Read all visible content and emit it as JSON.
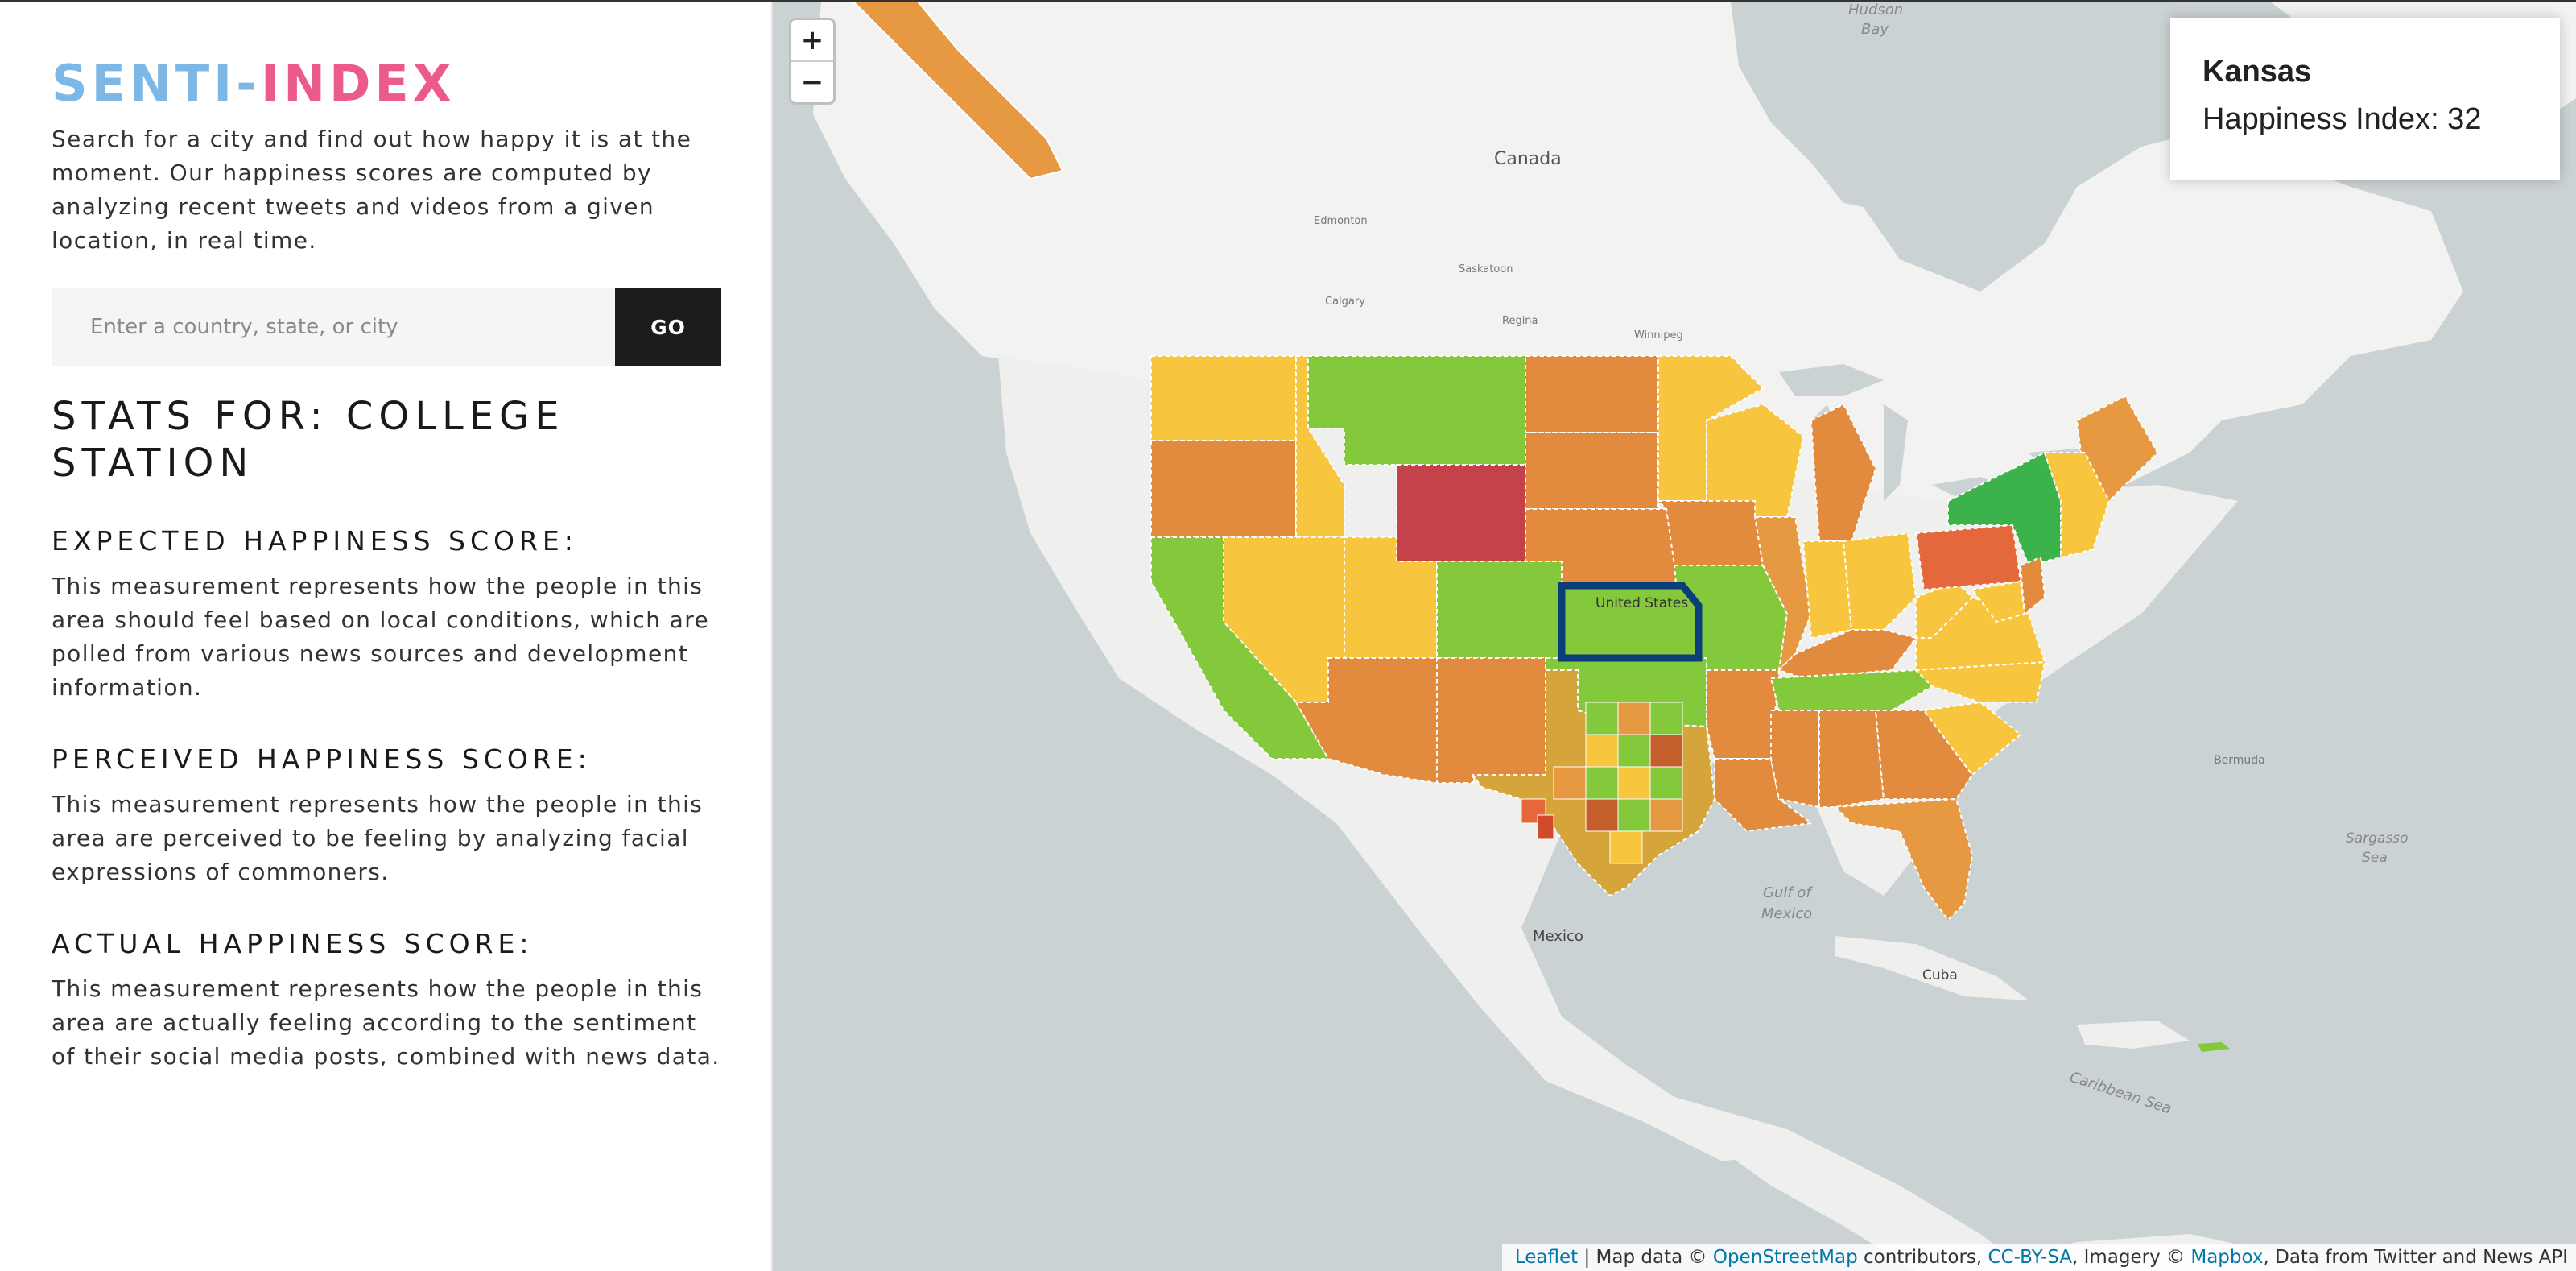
{
  "sidebar": {
    "logo_part1": "SENTI-",
    "logo_part2": "INDEX",
    "intro": "Search for a city and find out how happy it is at the moment. Our happiness scores are computed by analyzing recent tweets and videos from a given location, in real time.",
    "search_placeholder": "Enter a country, state, or city",
    "go_label": "GO",
    "stats_title": "STATS FOR: COLLEGE STATION",
    "expected": {
      "heading": "EXPECTED HAPPINESS SCORE:",
      "text": "This measurement represents how the people in this area should feel based on local conditions, which are polled from various news sources and development information."
    },
    "perceived": {
      "heading": "PERCEIVED HAPPINESS SCORE:",
      "text": "This measurement represents how the people in this area are perceived to be feeling by analyzing facial expressions of commoners."
    },
    "actual": {
      "heading": "ACTUAL HAPPINESS SCORE:",
      "text": "This measurement represents how the people in this area are actually feeling according to the sentiment of their social media posts, combined with news data."
    }
  },
  "map": {
    "zoom_in": "+",
    "zoom_out": "−",
    "info": {
      "region": "Kansas",
      "score_text": "Happiness Index: 32"
    },
    "labels": {
      "canada": "Canada",
      "united_states": "United States",
      "mexico": "Mexico",
      "cuba": "Cuba",
      "gulf": "Gulf of",
      "gulf2": "Mexico",
      "hudson": "Hudson",
      "hudson2": "Bay",
      "sargasso": "Sargasso",
      "sargasso2": "Sea",
      "bermuda": "Bermuda",
      "caribbean": "Caribbean Sea",
      "calgary": "Calgary",
      "regina": "Regina",
      "winnipeg": "Winnipeg",
      "saskatoon": "Saskatoon",
      "edmonton": "Edmonton"
    },
    "colors": {
      "dark_green": "#3cb34a",
      "green": "#84c83c",
      "yellow": "#f7c63e",
      "light_orange": "#eea445",
      "orange": "#e28b3f",
      "red_orange": "#e5683d",
      "red": "#c4434a",
      "highlight": "#0b3f7a"
    },
    "attribution": {
      "leaflet": "Leaflet",
      "sep1": " | Map data © ",
      "osm": "OpenStreetMap",
      "contributors": " contributors, ",
      "license": "CC-BY-SA",
      "imagery": ", Imagery © ",
      "mapbox": "Mapbox",
      "data_from": ", Data from Twitter and News API"
    }
  }
}
